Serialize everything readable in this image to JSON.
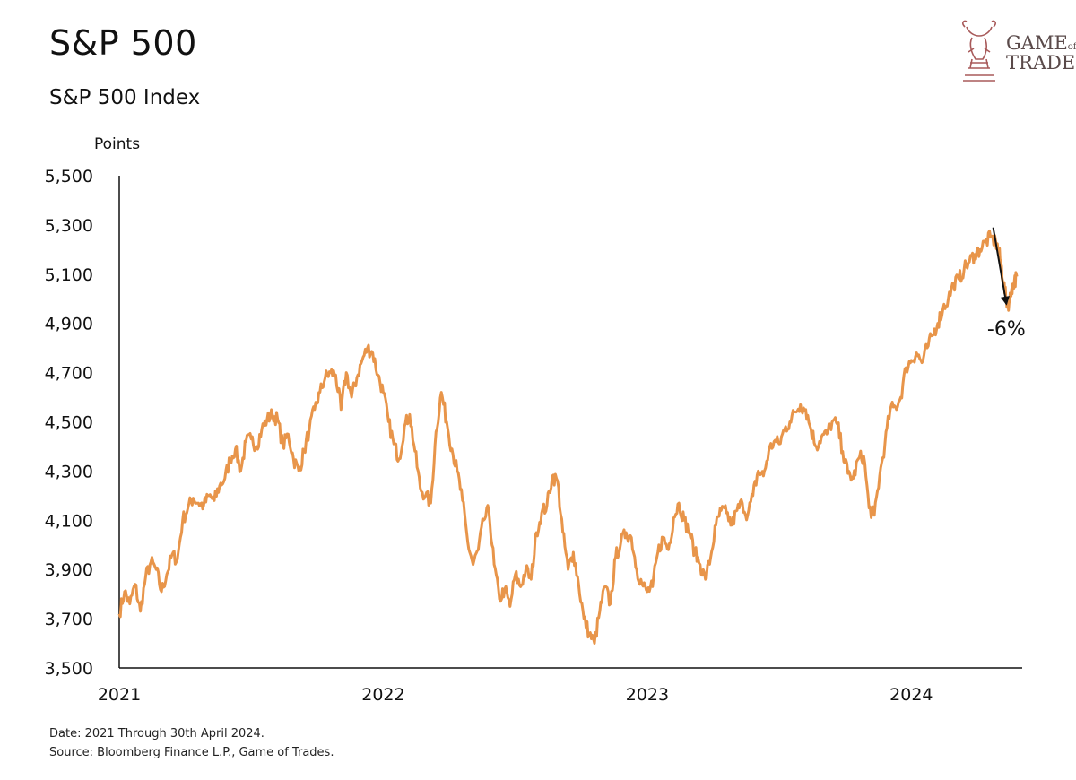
{
  "header": {
    "title": "S&P 500",
    "subtitle": "S&P 500 Index"
  },
  "logo": {
    "line1_big": "G",
    "line1_rest": "AME",
    "line1_of": "of",
    "line2": "TRADES"
  },
  "footer": {
    "date_note": "Date: 2021 Through 30th April 2024.",
    "source_note": "Source: Bloomberg Finance L.P., Game of Trades."
  },
  "colors": {
    "line": "#e8954a",
    "axis": "#111111",
    "logo": "#a85a5a"
  },
  "chart_data": {
    "type": "line",
    "title": "S&P 500",
    "subtitle": "S&P 500 Index",
    "ylabel": "Points",
    "xlabel": "",
    "ylim": [
      3500,
      5500
    ],
    "yticks": [
      "5,500",
      "5,300",
      "5,100",
      "4,900",
      "4,700",
      "4,500",
      "4,300",
      "4,100",
      "3,900",
      "3,700",
      "3,500"
    ],
    "ytick_values": [
      5500,
      5300,
      5100,
      4900,
      4700,
      4500,
      4300,
      4100,
      3900,
      3700,
      3500
    ],
    "xlim": [
      2021.0,
      2024.42
    ],
    "xticks": [
      "2021",
      "2022",
      "2023",
      "2024"
    ],
    "xtick_values": [
      2021,
      2022,
      2023,
      2024
    ],
    "grid": false,
    "series": [
      {
        "x": [
          2021.0,
          2021.02,
          2021.04,
          2021.06,
          2021.08,
          2021.1,
          2021.12,
          2021.14,
          2021.16,
          2021.18,
          2021.2,
          2021.22,
          2021.24,
          2021.26,
          2021.28,
          2021.3,
          2021.32,
          2021.34,
          2021.36,
          2021.38,
          2021.4,
          2021.42,
          2021.44,
          2021.46,
          2021.48,
          2021.5,
          2021.52,
          2021.54,
          2021.56,
          2021.58,
          2021.6,
          2021.62,
          2021.64,
          2021.66,
          2021.68,
          2021.7,
          2021.72,
          2021.74,
          2021.76,
          2021.78,
          2021.8,
          2021.82,
          2021.84,
          2021.86,
          2021.88,
          2021.9,
          2021.92,
          2021.94,
          2021.96,
          2021.98,
          2022.0,
          2022.02,
          2022.04,
          2022.06,
          2022.08,
          2022.1,
          2022.12,
          2022.14,
          2022.16,
          2022.18,
          2022.2,
          2022.22,
          2022.24,
          2022.26,
          2022.28,
          2022.3,
          2022.32,
          2022.34,
          2022.36,
          2022.38,
          2022.4,
          2022.42,
          2022.44,
          2022.46,
          2022.48,
          2022.5,
          2022.52,
          2022.54,
          2022.56,
          2022.58,
          2022.6,
          2022.62,
          2022.64,
          2022.66,
          2022.68,
          2022.7,
          2022.72,
          2022.74,
          2022.76,
          2022.78,
          2022.8,
          2022.82,
          2022.84,
          2022.86,
          2022.88,
          2022.9,
          2022.92,
          2022.94,
          2022.96,
          2022.98,
          2023.0,
          2023.02,
          2023.04,
          2023.06,
          2023.08,
          2023.1,
          2023.12,
          2023.14,
          2023.16,
          2023.18,
          2023.2,
          2023.22,
          2023.24,
          2023.26,
          2023.28,
          2023.3,
          2023.32,
          2023.34,
          2023.36,
          2023.38,
          2023.4,
          2023.42,
          2023.44,
          2023.46,
          2023.48,
          2023.5,
          2023.52,
          2023.54,
          2023.56,
          2023.58,
          2023.6,
          2023.62,
          2023.64,
          2023.66,
          2023.68,
          2023.7,
          2023.72,
          2023.74,
          2023.76,
          2023.78,
          2023.8,
          2023.82,
          2023.84,
          2023.86,
          2023.88,
          2023.9,
          2023.92,
          2023.94,
          2023.96,
          2023.98,
          2024.0,
          2024.02,
          2024.04,
          2024.06,
          2024.08,
          2024.1,
          2024.12,
          2024.14,
          2024.16,
          2024.18,
          2024.2,
          2024.22,
          2024.24,
          2024.26,
          2024.28,
          2024.3,
          2024.32
        ],
        "values": [
          3720,
          3810,
          3760,
          3840,
          3730,
          3870,
          3930,
          3900,
          3810,
          3880,
          3960,
          3940,
          4100,
          4150,
          4190,
          4170,
          4160,
          4200,
          4180,
          4240,
          4270,
          4350,
          4390,
          4300,
          4420,
          4430,
          4400,
          4470,
          4510,
          4530,
          4510,
          4400,
          4450,
          4350,
          4300,
          4380,
          4470,
          4550,
          4620,
          4680,
          4700,
          4690,
          4550,
          4700,
          4600,
          4680,
          4750,
          4800,
          4780,
          4690,
          4620,
          4500,
          4410,
          4350,
          4480,
          4530,
          4380,
          4230,
          4200,
          4170,
          4460,
          4620,
          4500,
          4390,
          4300,
          4180,
          4010,
          3920,
          3980,
          4100,
          4140,
          3920,
          3780,
          3820,
          3750,
          3880,
          3830,
          3900,
          3860,
          4050,
          4130,
          4160,
          4280,
          4260,
          4050,
          3900,
          3970,
          3840,
          3700,
          3640,
          3600,
          3730,
          3830,
          3760,
          3950,
          4010,
          4050,
          4030,
          3900,
          3840,
          3810,
          3830,
          3970,
          4030,
          3980,
          4110,
          4170,
          4100,
          4050,
          3970,
          3920,
          3860,
          3950,
          4080,
          4140,
          4130,
          4080,
          4140,
          4170,
          4120,
          4200,
          4300,
          4280,
          4380,
          4420,
          4410,
          4470,
          4500,
          4540,
          4570,
          4550,
          4470,
          4400,
          4440,
          4450,
          4500,
          4490,
          4380,
          4290,
          4270,
          4350,
          4360,
          4150,
          4120,
          4280,
          4410,
          4550,
          4560,
          4600,
          4720,
          4750,
          4780,
          4740,
          4800,
          4850,
          4900,
          4960,
          5000,
          5060,
          5080,
          5120,
          5150,
          5180,
          5200,
          5230,
          5250,
          5230
        ]
      },
      {
        "x": [
          2024.32,
          2024.33,
          2024.34,
          2024.35,
          2024.36,
          2024.37,
          2024.38,
          2024.39,
          2024.4
        ],
        "values": [
          5230,
          5200,
          5140,
          5060,
          4990,
          4980,
          5040,
          5070,
          5090
        ]
      }
    ],
    "annotations": [
      {
        "text": "-6%",
        "x": 2024.36,
        "y": 4880
      }
    ],
    "arrow": {
      "from": {
        "x": 2024.31,
        "y": 5290
      },
      "to": {
        "x": 2024.36,
        "y": 4980
      }
    }
  }
}
